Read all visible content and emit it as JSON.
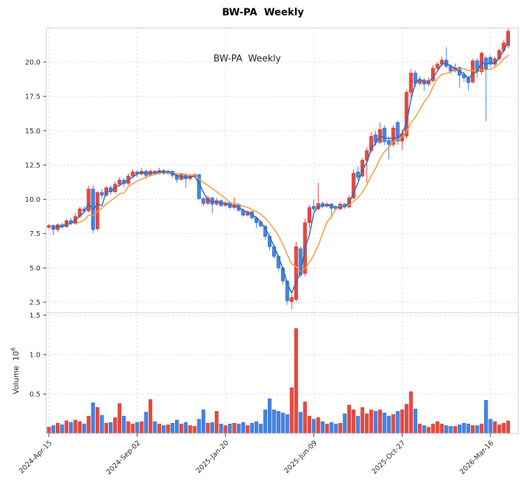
{
  "title": "BW-PA  Weekly",
  "inner_title": "BW-PA  Weekly",
  "axes": {
    "price_ticks": [
      "2.5",
      "5.0",
      "7.5",
      "10.0",
      "12.5",
      "15.0",
      "17.5",
      "20.0"
    ],
    "volume_ticks": [
      "0.5",
      "1.0",
      "1.5"
    ],
    "volume_label": "Volume",
    "volume_unit_base": "10",
    "volume_unit_exp": "6",
    "x_tick_labels": [
      "2024-Apr-15",
      "2024-Sep-02",
      "2025-Jan-20",
      "2025-Jun-09",
      "2025-Oct-27",
      "2026-Mar-16"
    ],
    "x_tick_indices": [
      1,
      21,
      41,
      61,
      81,
      101
    ]
  },
  "chart_data": {
    "type": "candlestick+volume",
    "frequency": "weekly",
    "title": "BW-PA  Weekly",
    "price_ylim": [
      1.75,
      22.45
    ],
    "volume_ylim_millions": [
      0,
      1.53
    ],
    "grid": true,
    "colors": {
      "up": "#e8483f",
      "up_edge": "#c93a32",
      "down": "#4284e8",
      "down_edge": "#2f66c4",
      "ma_fast": "#2f6eb2",
      "ma_slow": "#f79a3c",
      "grid": "#dcdcdc",
      "spine": "#cccccc",
      "tick_text": "#262626"
    },
    "ma_fast_window": 3,
    "ma_slow_window": 8,
    "columns": [
      "date",
      "open",
      "high",
      "low",
      "close",
      "volume_millions"
    ],
    "candles": [
      [
        "2024-04-08",
        8.1,
        8.25,
        7.85,
        7.95,
        0.06
      ],
      [
        "2024-04-15",
        7.95,
        8.2,
        7.85,
        8.1,
        0.08
      ],
      [
        "2024-04-22",
        8.1,
        8.15,
        7.4,
        7.8,
        0.1
      ],
      [
        "2024-04-29",
        7.8,
        8.25,
        7.6,
        8.15,
        0.13
      ],
      [
        "2024-05-06",
        8.15,
        8.3,
        7.9,
        8.0,
        0.11
      ],
      [
        "2024-05-13",
        8.0,
        8.55,
        7.95,
        8.45,
        0.16
      ],
      [
        "2024-05-20",
        8.45,
        8.65,
        8.1,
        8.25,
        0.14
      ],
      [
        "2024-05-27",
        8.25,
        9.0,
        8.2,
        8.75,
        0.17
      ],
      [
        "2024-06-03",
        8.75,
        9.45,
        8.65,
        9.3,
        0.15
      ],
      [
        "2024-06-10",
        9.3,
        9.5,
        9.0,
        9.15,
        0.12
      ],
      [
        "2024-06-17",
        9.15,
        11.0,
        9.05,
        10.75,
        0.22
      ],
      [
        "2024-06-24",
        10.75,
        11.05,
        7.55,
        7.8,
        0.39
      ],
      [
        "2024-07-01",
        7.85,
        10.6,
        7.7,
        10.5,
        0.33
      ],
      [
        "2024-07-08",
        10.5,
        10.75,
        10.05,
        10.3,
        0.23
      ],
      [
        "2024-07-15",
        10.3,
        10.95,
        10.2,
        10.85,
        0.13
      ],
      [
        "2024-07-22",
        10.85,
        11.0,
        10.35,
        10.55,
        0.14
      ],
      [
        "2024-07-29",
        10.55,
        11.3,
        10.45,
        11.1,
        0.2
      ],
      [
        "2024-08-05",
        11.1,
        11.6,
        10.95,
        11.4,
        0.38
      ],
      [
        "2024-08-12",
        11.4,
        11.55,
        10.9,
        11.15,
        0.22
      ],
      [
        "2024-08-19",
        11.15,
        11.9,
        11.05,
        11.7,
        0.15
      ],
      [
        "2024-08-26",
        11.7,
        12.2,
        11.55,
        12.0,
        0.12
      ],
      [
        "2024-09-02",
        12.0,
        12.1,
        11.6,
        11.85,
        0.14
      ],
      [
        "2024-09-09",
        11.85,
        12.3,
        11.75,
        12.05,
        0.15
      ],
      [
        "2024-09-16",
        12.05,
        12.15,
        11.5,
        11.75,
        0.27
      ],
      [
        "2024-09-23",
        11.75,
        12.2,
        11.65,
        12.05,
        0.43
      ],
      [
        "2024-09-30",
        12.05,
        12.15,
        11.8,
        11.9,
        0.15
      ],
      [
        "2024-10-07",
        11.9,
        12.3,
        11.8,
        12.1,
        0.12
      ],
      [
        "2024-10-14",
        12.1,
        12.2,
        11.8,
        11.9,
        0.1
      ],
      [
        "2024-10-21",
        11.9,
        12.15,
        11.8,
        12.05,
        0.11
      ],
      [
        "2024-10-28",
        12.05,
        12.1,
        11.55,
        11.75,
        0.13
      ],
      [
        "2024-11-04",
        11.75,
        11.85,
        11.2,
        11.45,
        0.17
      ],
      [
        "2024-11-11",
        11.45,
        11.95,
        11.35,
        11.8,
        0.12
      ],
      [
        "2024-11-18",
        11.8,
        11.9,
        10.85,
        11.5,
        0.14
      ],
      [
        "2024-11-25",
        11.5,
        11.8,
        11.4,
        11.7,
        0.1
      ],
      [
        "2024-12-02",
        11.7,
        11.9,
        11.6,
        11.8,
        0.09
      ],
      [
        "2024-12-09",
        11.8,
        11.85,
        9.95,
        10.05,
        0.18
      ],
      [
        "2024-12-16",
        10.05,
        10.15,
        9.5,
        9.7,
        0.3
      ],
      [
        "2024-12-23",
        9.7,
        10.3,
        9.6,
        10.1,
        0.13
      ],
      [
        "2024-12-30",
        10.1,
        10.2,
        9.0,
        9.65,
        0.14
      ],
      [
        "2025-01-06",
        9.65,
        10.1,
        9.55,
        9.9,
        0.28
      ],
      [
        "2025-01-13",
        9.9,
        10.0,
        9.45,
        9.55,
        0.12
      ],
      [
        "2025-01-20",
        9.55,
        9.85,
        9.45,
        9.75,
        0.1
      ],
      [
        "2025-01-27",
        9.75,
        9.85,
        9.3,
        9.4,
        0.12
      ],
      [
        "2025-02-03",
        9.4,
        10.15,
        9.3,
        9.6,
        0.13
      ],
      [
        "2025-02-10",
        9.6,
        9.7,
        9.1,
        9.2,
        0.12
      ],
      [
        "2025-02-17",
        9.2,
        9.35,
        8.75,
        8.85,
        0.14
      ],
      [
        "2025-02-24",
        8.85,
        9.2,
        8.75,
        9.1,
        0.1
      ],
      [
        "2025-03-03",
        9.1,
        9.15,
        8.55,
        8.65,
        0.13
      ],
      [
        "2025-03-10",
        8.65,
        8.75,
        7.9,
        8.3,
        0.15
      ],
      [
        "2025-03-17",
        8.35,
        8.5,
        7.95,
        8.05,
        0.12
      ],
      [
        "2025-03-24",
        8.05,
        8.1,
        7.05,
        7.3,
        0.3
      ],
      [
        "2025-03-31",
        7.3,
        7.4,
        6.3,
        6.55,
        0.44
      ],
      [
        "2025-04-07",
        6.55,
        6.7,
        5.7,
        5.85,
        0.3
      ],
      [
        "2025-04-14",
        5.85,
        5.95,
        4.8,
        5.0,
        0.28
      ],
      [
        "2025-04-21",
        5.0,
        5.1,
        3.85,
        4.05,
        0.26
      ],
      [
        "2025-04-28",
        4.05,
        4.1,
        2.3,
        2.6,
        0.24
      ],
      [
        "2025-05-05",
        2.55,
        3.05,
        2.0,
        2.85,
        0.58
      ],
      [
        "2025-05-12",
        2.7,
        6.9,
        2.55,
        6.55,
        1.33
      ],
      [
        "2025-05-19",
        6.4,
        6.6,
        4.3,
        4.5,
        0.27
      ],
      [
        "2025-05-26",
        4.6,
        8.6,
        4.4,
        8.3,
        0.4
      ],
      [
        "2025-06-02",
        8.3,
        9.6,
        7.9,
        9.4,
        0.22
      ],
      [
        "2025-06-09",
        9.5,
        10.0,
        9.1,
        9.3,
        0.18
      ],
      [
        "2025-06-16",
        9.3,
        11.2,
        9.2,
        9.7,
        0.2
      ],
      [
        "2025-06-23",
        9.7,
        9.85,
        9.35,
        9.5,
        0.15
      ],
      [
        "2025-06-30",
        9.5,
        9.8,
        9.4,
        9.65,
        0.12
      ],
      [
        "2025-07-07",
        9.65,
        9.75,
        8.6,
        9.35,
        0.14
      ],
      [
        "2025-07-14",
        9.45,
        9.6,
        9.2,
        9.3,
        0.12
      ],
      [
        "2025-07-21",
        9.3,
        9.8,
        9.25,
        9.65,
        0.13
      ],
      [
        "2025-07-28",
        9.65,
        9.75,
        9.3,
        9.45,
        0.25
      ],
      [
        "2025-08-04",
        9.45,
        10.3,
        9.35,
        10.1,
        0.36
      ],
      [
        "2025-08-11",
        10.1,
        12.2,
        10.0,
        11.9,
        0.3
      ],
      [
        "2025-08-18",
        12.0,
        12.4,
        11.4,
        11.6,
        0.22
      ],
      [
        "2025-08-25",
        11.7,
        13.0,
        11.6,
        12.85,
        0.33
      ],
      [
        "2025-09-01",
        12.85,
        13.8,
        11.2,
        13.55,
        0.25
      ],
      [
        "2025-09-08",
        13.55,
        14.9,
        13.4,
        14.6,
        0.3
      ],
      [
        "2025-09-15",
        14.7,
        15.0,
        13.9,
        14.15,
        0.28
      ],
      [
        "2025-09-22",
        14.15,
        15.6,
        14.0,
        15.1,
        0.3
      ],
      [
        "2025-09-29",
        15.2,
        15.4,
        13.95,
        14.2,
        0.26
      ],
      [
        "2025-10-06",
        14.3,
        14.6,
        12.9,
        14.0,
        0.22
      ],
      [
        "2025-10-13",
        14.0,
        15.4,
        13.8,
        15.2,
        0.24
      ],
      [
        "2025-10-20",
        15.6,
        15.75,
        13.95,
        14.25,
        0.28
      ],
      [
        "2025-10-27",
        14.25,
        15.1,
        13.6,
        14.8,
        0.3
      ],
      [
        "2025-11-03",
        14.6,
        18.0,
        14.4,
        17.8,
        0.37
      ],
      [
        "2025-11-10",
        17.8,
        19.5,
        17.4,
        19.2,
        0.53
      ],
      [
        "2025-11-17",
        19.2,
        19.4,
        18.2,
        18.45,
        0.31
      ],
      [
        "2025-11-24",
        18.45,
        19.0,
        18.3,
        18.7,
        0.12
      ],
      [
        "2025-12-01",
        18.7,
        18.85,
        17.9,
        18.4,
        0.1
      ],
      [
        "2025-12-08",
        18.4,
        18.9,
        18.25,
        18.65,
        0.08
      ],
      [
        "2025-12-15",
        18.65,
        19.8,
        18.5,
        19.55,
        0.12
      ],
      [
        "2025-12-22",
        19.55,
        20.0,
        19.4,
        19.85,
        0.15
      ],
      [
        "2025-12-29",
        19.85,
        20.4,
        19.7,
        20.15,
        0.12
      ],
      [
        "2026-01-05",
        20.15,
        21.1,
        19.55,
        19.7,
        0.1
      ],
      [
        "2026-01-12",
        19.7,
        19.85,
        19.1,
        19.35,
        0.09
      ],
      [
        "2026-01-19",
        19.35,
        19.9,
        19.25,
        19.6,
        0.09
      ],
      [
        "2026-01-26",
        19.6,
        19.7,
        18.1,
        19.05,
        0.11
      ],
      [
        "2026-02-02",
        19.1,
        19.3,
        18.55,
        18.85,
        0.13
      ],
      [
        "2026-02-09",
        18.85,
        19.0,
        17.95,
        18.5,
        0.12
      ],
      [
        "2026-02-16",
        18.55,
        20.25,
        18.45,
        20.1,
        0.1
      ],
      [
        "2026-02-23",
        20.1,
        20.3,
        18.85,
        19.3,
        0.1
      ],
      [
        "2026-03-02",
        19.3,
        20.8,
        19.1,
        20.65,
        0.12
      ],
      [
        "2026-03-09",
        20.3,
        20.45,
        15.7,
        19.5,
        0.42
      ],
      [
        "2026-03-16",
        20.35,
        20.5,
        19.6,
        19.85,
        0.18
      ],
      [
        "2026-03-23",
        19.85,
        20.4,
        19.7,
        20.25,
        0.15
      ],
      [
        "2026-03-30",
        20.25,
        21.0,
        20.1,
        20.85,
        0.11
      ],
      [
        "2026-04-06",
        20.85,
        21.6,
        20.7,
        21.4,
        0.13
      ],
      [
        "2026-04-13",
        21.2,
        22.45,
        21.0,
        22.25,
        0.16
      ]
    ]
  }
}
